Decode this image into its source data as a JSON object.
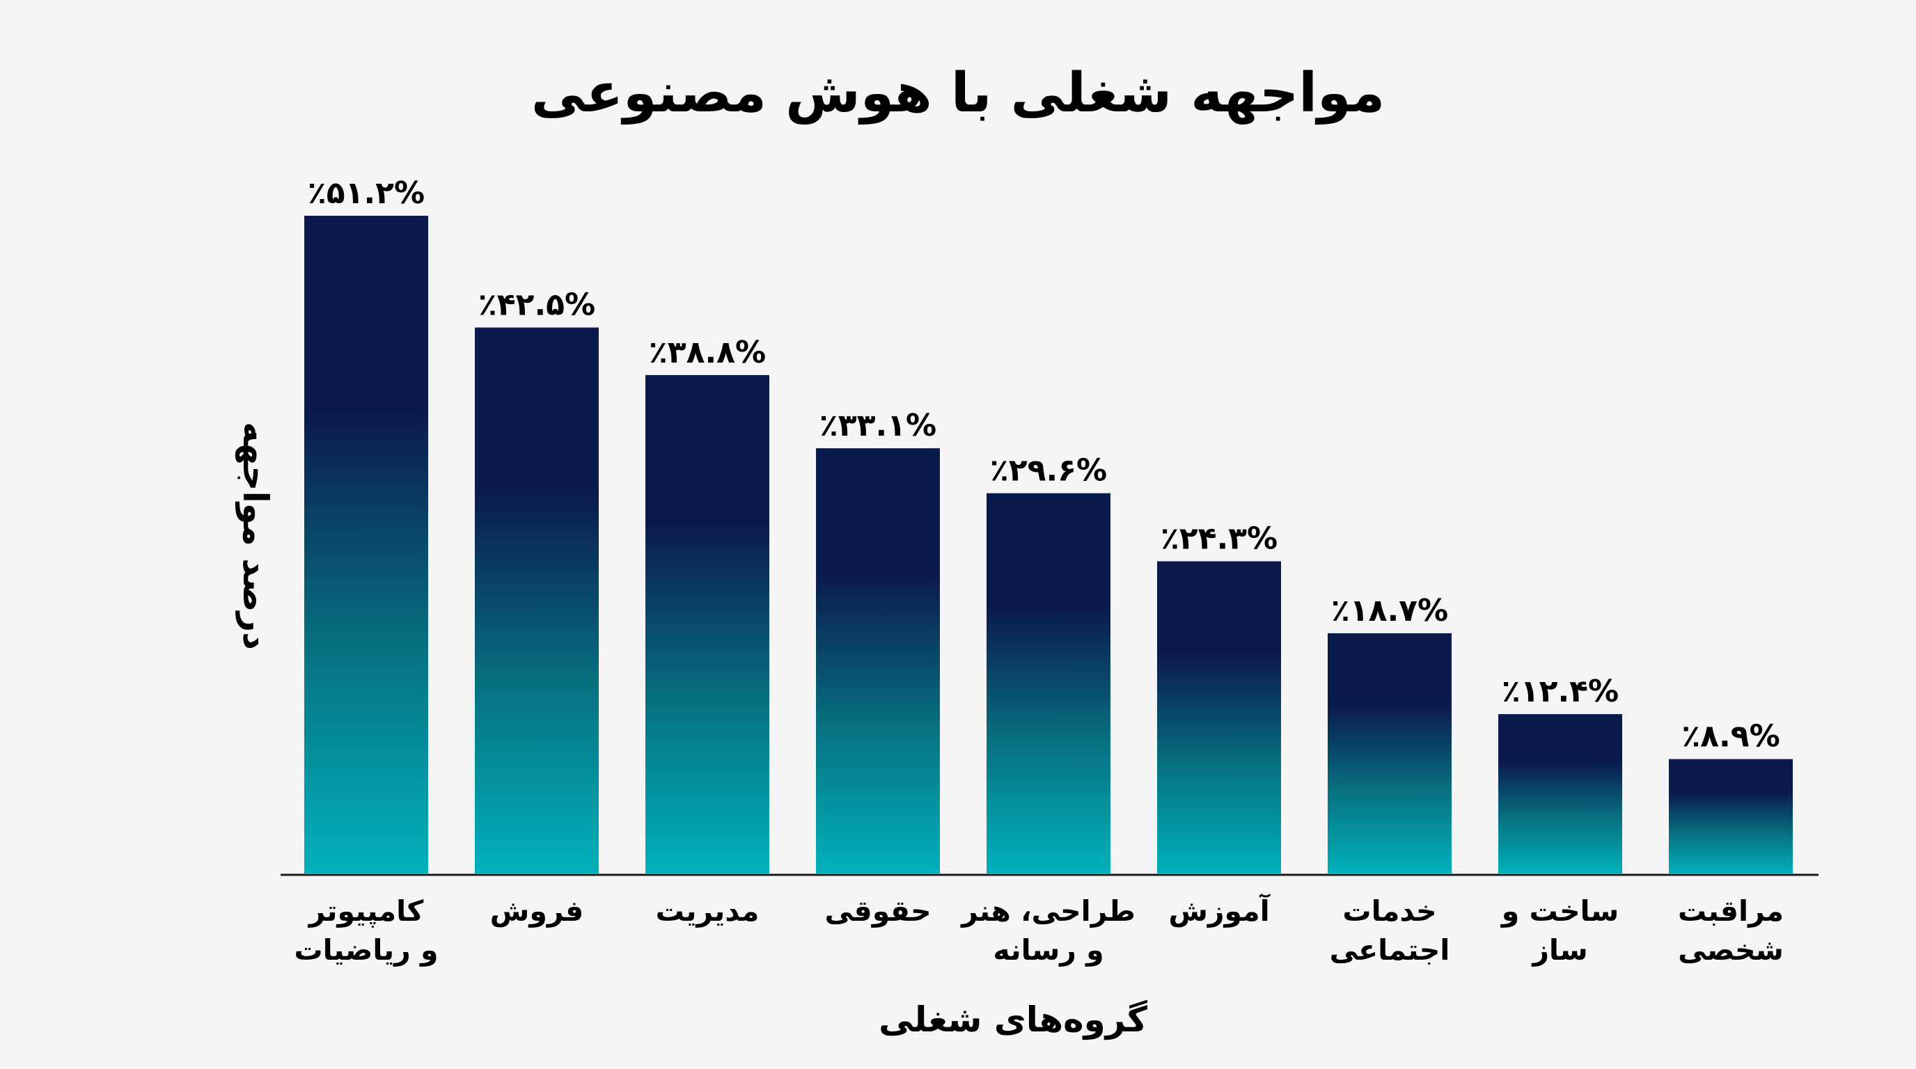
{
  "chart_data": {
    "type": "bar",
    "title": "مواجهه شغلی با هوش مصنوعی",
    "xlabel": "گروه‌های شغلی",
    "ylabel": "درصد مواجهه",
    "categories": [
      [
        "کامپیوتر",
        "و ریاضیات"
      ],
      [
        "فروش"
      ],
      [
        "مدیریت"
      ],
      [
        "حقوقی"
      ],
      [
        "طراحی، هنر",
        "و رسانه"
      ],
      [
        "آموزش"
      ],
      [
        "خدمات",
        "اجتماعی"
      ],
      [
        "ساخت و",
        "ساز"
      ],
      [
        "مراقبت",
        "شخصی"
      ]
    ],
    "values": [
      51.2,
      42.5,
      38.8,
      33.1,
      29.6,
      24.3,
      18.7,
      12.4,
      8.9
    ],
    "value_labels": [
      "٪۵۱.۲%",
      "٪۴۲.۵%",
      "٪۳۸.۸%",
      "٪۳۳.۱%",
      "٪۲۹.۶%",
      "٪۲۴.۳%",
      "٪۱۸.۷%",
      "٪۱۲.۴%",
      "٪۸.۹%"
    ],
    "ylim": [
      0,
      51.2
    ],
    "grid": false,
    "legend": "none",
    "colors": {
      "bar_top": "#0b1a4d",
      "bar_bottom": "#00b1bb",
      "axis": "#1a1a1a",
      "background": "#f5f5f5",
      "text": "#000000"
    }
  }
}
